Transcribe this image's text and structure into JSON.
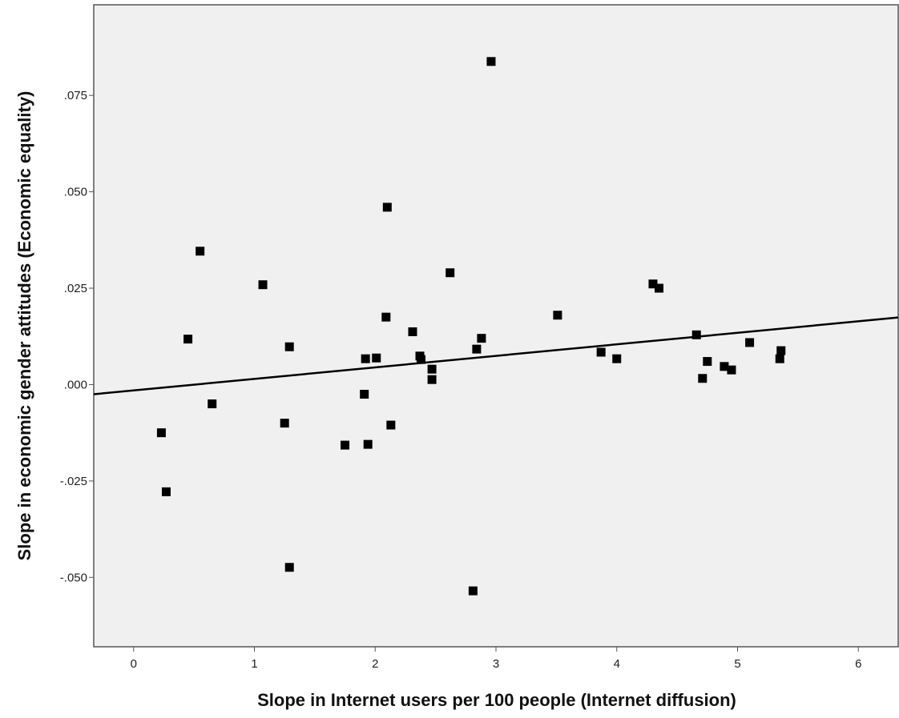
{
  "chart_data": {
    "type": "scatter",
    "title": "",
    "xlabel": "Slope in Internet users per 100 people (Internet diffusion)",
    "ylabel": "Slope in economic gender attitudes (Economic equality)",
    "xlim": [
      -0.33,
      6.33
    ],
    "ylim": [
      -0.068,
      0.0985
    ],
    "x_ticks": [
      0,
      1,
      2,
      3,
      4,
      5,
      6
    ],
    "x_tick_labels": [
      "0",
      "1",
      "2",
      "3",
      "4",
      "5",
      "6"
    ],
    "y_ticks": [
      -0.05,
      -0.025,
      0.0,
      0.025,
      0.05,
      0.075
    ],
    "y_tick_labels": [
      "-.050",
      "-.025",
      ".000",
      ".025",
      ".050",
      ".075"
    ],
    "grid": false,
    "legend": "none",
    "plot_background": "#f0f0f0",
    "marker_color": "#000000",
    "points": [
      {
        "x": 0.23,
        "y": -0.0125
      },
      {
        "x": 0.27,
        "y": -0.0278
      },
      {
        "x": 0.45,
        "y": 0.0118
      },
      {
        "x": 0.55,
        "y": 0.0346
      },
      {
        "x": 0.65,
        "y": -0.005
      },
      {
        "x": 1.07,
        "y": 0.0259
      },
      {
        "x": 1.25,
        "y": -0.01
      },
      {
        "x": 1.29,
        "y": 0.0098
      },
      {
        "x": 1.29,
        "y": -0.0474
      },
      {
        "x": 1.75,
        "y": -0.0157
      },
      {
        "x": 1.91,
        "y": -0.0025
      },
      {
        "x": 1.92,
        "y": 0.0067
      },
      {
        "x": 1.94,
        "y": -0.0155
      },
      {
        "x": 2.01,
        "y": 0.0069
      },
      {
        "x": 2.09,
        "y": 0.0175
      },
      {
        "x": 2.1,
        "y": 0.046
      },
      {
        "x": 2.13,
        "y": -0.0105
      },
      {
        "x": 2.31,
        "y": 0.0137
      },
      {
        "x": 2.37,
        "y": 0.0074
      },
      {
        "x": 2.38,
        "y": 0.0065
      },
      {
        "x": 2.47,
        "y": 0.004
      },
      {
        "x": 2.47,
        "y": 0.0013
      },
      {
        "x": 2.62,
        "y": 0.029
      },
      {
        "x": 2.81,
        "y": -0.0535
      },
      {
        "x": 2.84,
        "y": 0.0092
      },
      {
        "x": 2.88,
        "y": 0.012
      },
      {
        "x": 2.96,
        "y": 0.0838
      },
      {
        "x": 3.51,
        "y": 0.018
      },
      {
        "x": 3.87,
        "y": 0.0084
      },
      {
        "x": 4.0,
        "y": 0.0067
      },
      {
        "x": 4.3,
        "y": 0.0261
      },
      {
        "x": 4.35,
        "y": 0.025
      },
      {
        "x": 4.66,
        "y": 0.0129
      },
      {
        "x": 4.71,
        "y": 0.0016
      },
      {
        "x": 4.75,
        "y": 0.006
      },
      {
        "x": 4.89,
        "y": 0.0047
      },
      {
        "x": 4.95,
        "y": 0.0038
      },
      {
        "x": 5.1,
        "y": 0.0109
      },
      {
        "x": 5.35,
        "y": 0.0067
      },
      {
        "x": 5.36,
        "y": 0.0088
      }
    ],
    "fit_line": {
      "x": [
        -0.33,
        6.33
      ],
      "y": [
        -0.0025,
        0.0174
      ]
    }
  }
}
